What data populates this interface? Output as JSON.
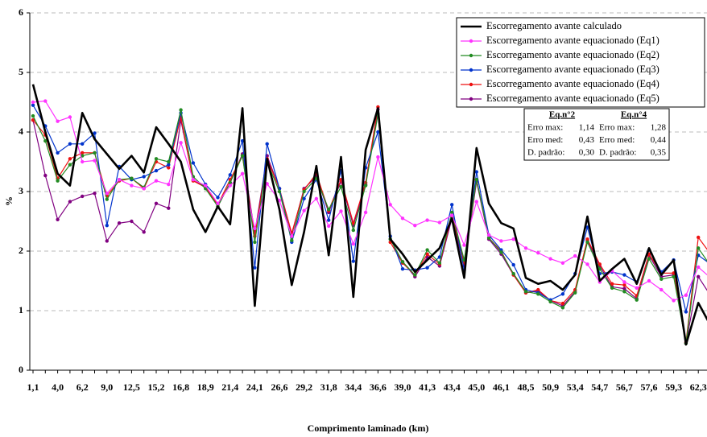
{
  "chart_data": {
    "type": "line",
    "y_label": "%",
    "x_label": "Comprimento laminado (km)",
    "categories": [
      "1,1",
      null,
      "4,0",
      null,
      "6,2",
      null,
      "9,0",
      null,
      "12,5",
      null,
      "15,2",
      null,
      "16,8",
      null,
      "18,9",
      null,
      "21,4",
      null,
      "24,1",
      null,
      "26,6",
      null,
      "29,2",
      null,
      "31,8",
      null,
      "34,4",
      null,
      "36,6",
      null,
      "39,0",
      null,
      "41,3",
      null,
      "43,4",
      null,
      "45,0",
      null,
      "46,1",
      null,
      "48,5",
      null,
      "50,9",
      null,
      "53,4",
      null,
      "54,7",
      null,
      "56,7",
      null,
      "57,6",
      null,
      "59,3",
      null,
      "62,3",
      null
    ],
    "ylim": [
      0,
      6
    ],
    "yticks": [
      0,
      1,
      2,
      3,
      4,
      5,
      6
    ],
    "grid": true,
    "series": [
      {
        "name": "Escorregamento avante calculado",
        "color": "#000000",
        "values": [
          4.8,
          4.0,
          3.3,
          3.1,
          4.32,
          3.88,
          3.63,
          3.38,
          3.6,
          3.32,
          4.08,
          3.8,
          3.5,
          2.7,
          2.32,
          2.75,
          2.45,
          4.4,
          1.08,
          3.55,
          2.7,
          1.43,
          2.32,
          3.43,
          1.93,
          3.58,
          1.23,
          3.7,
          4.4,
          2.2,
          1.95,
          1.65,
          1.85,
          2.05,
          2.55,
          1.55,
          3.73,
          2.8,
          2.47,
          2.38,
          1.55,
          1.45,
          1.5,
          1.35,
          1.6,
          2.58,
          1.5,
          1.7,
          1.87,
          1.45,
          2.05,
          1.6,
          1.85,
          0.43,
          1.13,
          0.75
        ]
      },
      {
        "name": "Escorregamento avante equacionado (Eq1)",
        "color": "#ff33ff",
        "values": [
          4.5,
          4.52,
          4.18,
          4.25,
          3.5,
          3.52,
          2.97,
          3.2,
          3.1,
          3.05,
          3.18,
          3.12,
          3.82,
          3.2,
          3.1,
          2.8,
          3.1,
          3.3,
          2.38,
          3.13,
          2.85,
          2.25,
          2.68,
          2.88,
          2.42,
          2.67,
          2.12,
          2.65,
          3.58,
          2.78,
          2.55,
          2.43,
          2.52,
          2.48,
          2.6,
          2.1,
          2.83,
          2.27,
          2.17,
          2.2,
          2.05,
          1.97,
          1.87,
          1.8,
          1.92,
          1.78,
          1.48,
          1.67,
          1.48,
          1.38,
          1.5,
          1.35,
          1.17,
          1.26,
          1.73,
          1.55
        ]
      },
      {
        "name": "Escorregamento avante equacionado (Eq2)",
        "color": "#228b22",
        "values": [
          4.27,
          3.85,
          3.18,
          3.45,
          3.6,
          3.65,
          2.87,
          3.2,
          3.22,
          3.07,
          3.55,
          3.5,
          4.37,
          3.25,
          3.05,
          2.75,
          3.15,
          3.6,
          2.15,
          3.5,
          3.0,
          2.18,
          3.0,
          3.22,
          2.7,
          3.08,
          2.35,
          3.1,
          4.3,
          2.2,
          1.82,
          1.6,
          2.02,
          1.8,
          2.65,
          1.85,
          3.2,
          2.22,
          1.98,
          1.62,
          1.32,
          1.28,
          1.15,
          1.05,
          1.3,
          2.15,
          1.7,
          1.38,
          1.32,
          1.18,
          1.87,
          1.53,
          1.57,
          0.45,
          2.05,
          1.75
        ]
      },
      {
        "name": "Escorregamento avante equacionado (Eq3)",
        "color": "#0033cc",
        "values": [
          4.45,
          4.1,
          3.65,
          3.8,
          3.8,
          3.98,
          2.43,
          3.42,
          3.2,
          3.25,
          3.35,
          3.45,
          4.32,
          3.48,
          3.12,
          2.9,
          3.28,
          3.85,
          1.72,
          3.8,
          3.05,
          2.15,
          2.88,
          3.2,
          2.52,
          3.35,
          1.83,
          3.4,
          4.0,
          2.25,
          1.7,
          1.68,
          1.72,
          1.9,
          2.78,
          1.68,
          3.33,
          2.27,
          2.02,
          1.77,
          1.35,
          1.3,
          1.18,
          1.28,
          1.62,
          2.4,
          1.62,
          1.65,
          1.6,
          1.48,
          2.02,
          1.65,
          1.85,
          0.98,
          1.93,
          1.78
        ]
      },
      {
        "name": "Escorregamento avante equacionado (Eq4)",
        "color": "#ee1111",
        "values": [
          4.2,
          3.95,
          3.22,
          3.55,
          3.65,
          3.65,
          2.93,
          3.18,
          3.22,
          3.05,
          3.5,
          3.4,
          4.25,
          3.18,
          3.07,
          2.78,
          3.2,
          3.6,
          2.25,
          3.55,
          3.05,
          2.3,
          3.03,
          3.3,
          2.68,
          3.2,
          2.47,
          3.15,
          4.42,
          2.15,
          1.8,
          1.6,
          1.95,
          1.78,
          2.6,
          1.8,
          3.2,
          2.22,
          2.0,
          1.6,
          1.3,
          1.35,
          1.17,
          1.12,
          1.35,
          2.2,
          1.78,
          1.45,
          1.43,
          1.25,
          1.95,
          1.63,
          1.63,
          0.47,
          2.23,
          1.95
        ]
      },
      {
        "name": "Escorregamento avante equacionado (Eq5)",
        "color": "#800080",
        "values": [
          4.2,
          3.27,
          2.53,
          2.83,
          2.92,
          2.97,
          2.17,
          2.47,
          2.5,
          2.32,
          2.8,
          2.72,
          4.2,
          3.2,
          3.08,
          2.75,
          3.15,
          3.63,
          2.3,
          3.6,
          3.05,
          2.27,
          3.05,
          3.25,
          2.65,
          3.17,
          2.43,
          3.12,
          4.38,
          2.2,
          1.82,
          1.57,
          1.9,
          1.75,
          2.55,
          1.75,
          3.17,
          2.2,
          1.95,
          1.6,
          1.3,
          1.33,
          1.17,
          1.08,
          1.32,
          2.18,
          1.75,
          1.4,
          1.37,
          1.2,
          1.93,
          1.57,
          1.6,
          0.45,
          1.57,
          1.25
        ]
      }
    ],
    "stats_table": {
      "columns": [
        {
          "header": "Eq.n°2",
          "rows": [
            {
              "label": "Erro max:",
              "value": "1,14"
            },
            {
              "label": "Erro med:",
              "value": "0,43"
            },
            {
              "label": "D. padrão:",
              "value": "0,30"
            }
          ]
        },
        {
          "header": "Eq.n°4",
          "rows": [
            {
              "label": "Erro max:",
              "value": "1,28"
            },
            {
              "label": "Erro med:",
              "value": "0,44"
            },
            {
              "label": "D. padrão:",
              "value": "0,35"
            }
          ]
        }
      ]
    }
  }
}
